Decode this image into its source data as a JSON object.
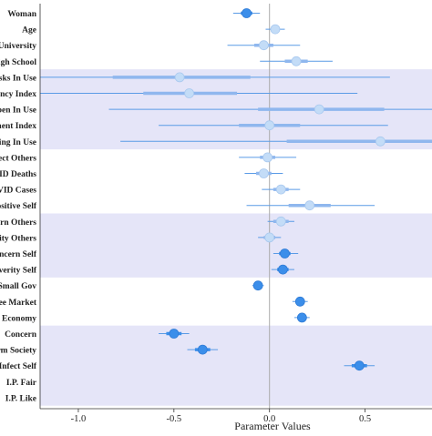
{
  "chart_data": {
    "type": "coefficient_plot",
    "xlabel": "Parameter Values",
    "xlim": [
      -1.2,
      0.85
    ],
    "xticks": [
      {
        "value": -1.0,
        "label": "-1.0"
      },
      {
        "value": -0.5,
        "label": "-0.5"
      },
      {
        "value": 0.0,
        "label": "0.0"
      },
      {
        "value": 0.5,
        "label": "0.5"
      }
    ],
    "reference_line": 0,
    "grid": false,
    "colors": {
      "dark_point": "#3b8eea",
      "light_point": "#c3dcf7",
      "thin_interval": "#5a9be6",
      "thick_interval": "#8fb7ee",
      "band_fill": "#e5e5f8",
      "reference_line": "#aaaaaa"
    },
    "bands": [
      {
        "from_row": 4,
        "to_row": 8
      },
      {
        "from_row": 13,
        "to_row": 16
      },
      {
        "from_row": 20,
        "to_row": 24
      }
    ],
    "rows": [
      {
        "label": "Woman",
        "estimate": -0.12,
        "thick": [
          -0.15,
          -0.09
        ],
        "thin": [
          -0.19,
          -0.05
        ],
        "significant": true
      },
      {
        "label": "Age",
        "estimate": 0.03,
        "thick": [
          0.01,
          0.05
        ],
        "thin": [
          -0.02,
          0.08
        ],
        "significant": false
      },
      {
        "label": "University",
        "estimate": -0.03,
        "thick": [
          -0.08,
          0.02
        ],
        "thin": [
          -0.22,
          0.16
        ],
        "significant": false
      },
      {
        "label": "High School",
        "estimate": 0.14,
        "thick": [
          0.08,
          0.2
        ],
        "thin": [
          -0.05,
          0.33
        ],
        "significant": false
      },
      {
        "label": "Masks In Use",
        "estimate": -0.47,
        "thick": [
          -0.82,
          -0.1
        ],
        "thin": [
          -1.3,
          0.63
        ],
        "significant": false
      },
      {
        "label": "Stringency Index",
        "estimate": -0.42,
        "thick": [
          -0.66,
          -0.17
        ],
        "thin": [
          -1.2,
          0.46
        ],
        "significant": false
      },
      {
        "label": "Restaurants Open In Use",
        "estimate": 0.26,
        "thick": [
          -0.06,
          0.6
        ],
        "thin": [
          -0.84,
          1.3
        ],
        "significant": false
      },
      {
        "label": "Containment Index",
        "estimate": 0.0,
        "thick": [
          -0.16,
          0.16
        ],
        "thin": [
          -0.58,
          0.62
        ],
        "significant": false
      },
      {
        "label": "Social Distancing In Use",
        "estimate": 0.58,
        "thick": [
          0.09,
          1.2
        ],
        "thin": [
          -0.78,
          1.5
        ],
        "significant": false
      },
      {
        "label": "Infect Others",
        "estimate": -0.01,
        "thick": [
          -0.05,
          0.03
        ],
        "thin": [
          -0.16,
          0.14
        ],
        "significant": false
      },
      {
        "label": "COVID Deaths",
        "estimate": -0.03,
        "thick": [
          -0.07,
          0.01
        ],
        "thin": [
          -0.13,
          0.07
        ],
        "significant": false
      },
      {
        "label": "COVID Cases",
        "estimate": 0.06,
        "thick": [
          0.02,
          0.1
        ],
        "thin": [
          -0.04,
          0.16
        ],
        "significant": false
      },
      {
        "label": "Positive Self",
        "estimate": 0.21,
        "thick": [
          0.1,
          0.32
        ],
        "thin": [
          -0.12,
          0.55
        ],
        "significant": false
      },
      {
        "label": "Concern Others",
        "estimate": 0.06,
        "thick": [
          0.02,
          0.1
        ],
        "thin": [
          -0.01,
          0.13
        ],
        "significant": false
      },
      {
        "label": "Severity Others",
        "estimate": 0.0,
        "thick": [
          -0.03,
          0.03
        ],
        "thin": [
          -0.06,
          0.06
        ],
        "significant": false
      },
      {
        "label": "Concern Self",
        "estimate": 0.08,
        "thick": [
          0.05,
          0.11
        ],
        "thin": [
          0.02,
          0.15
        ],
        "significant": true
      },
      {
        "label": "Severity Self",
        "estimate": 0.07,
        "thick": [
          0.04,
          0.1
        ],
        "thin": [
          0.01,
          0.13
        ],
        "significant": true
      },
      {
        "label": "Small Gov",
        "estimate": -0.06,
        "thick": [
          -0.08,
          -0.04
        ],
        "thin": [
          -0.09,
          -0.03
        ],
        "significant": true
      },
      {
        "label": "Free Market",
        "estimate": 0.16,
        "thick": [
          0.14,
          0.18
        ],
        "thin": [
          0.12,
          0.2
        ],
        "significant": true
      },
      {
        "label": "Economy",
        "estimate": 0.17,
        "thick": [
          0.15,
          0.19
        ],
        "thin": [
          0.13,
          0.21
        ],
        "significant": true
      },
      {
        "label": "Concern",
        "estimate": -0.5,
        "thick": [
          -0.54,
          -0.46
        ],
        "thin": [
          -0.58,
          -0.42
        ],
        "significant": true
      },
      {
        "label": "Harm Society",
        "estimate": -0.35,
        "thick": [
          -0.39,
          -0.31
        ],
        "thin": [
          -0.43,
          -0.27
        ],
        "significant": true
      },
      {
        "label": "Infect Self",
        "estimate": 0.47,
        "thick": [
          0.43,
          0.51
        ],
        "thin": [
          0.39,
          0.55
        ],
        "significant": true
      },
      {
        "label": "I.P. Fair",
        "estimate": null,
        "thick": null,
        "thin": null,
        "significant": false
      },
      {
        "label": "I.P. Like",
        "estimate": null,
        "thick": null,
        "thin": null,
        "significant": false
      }
    ]
  }
}
